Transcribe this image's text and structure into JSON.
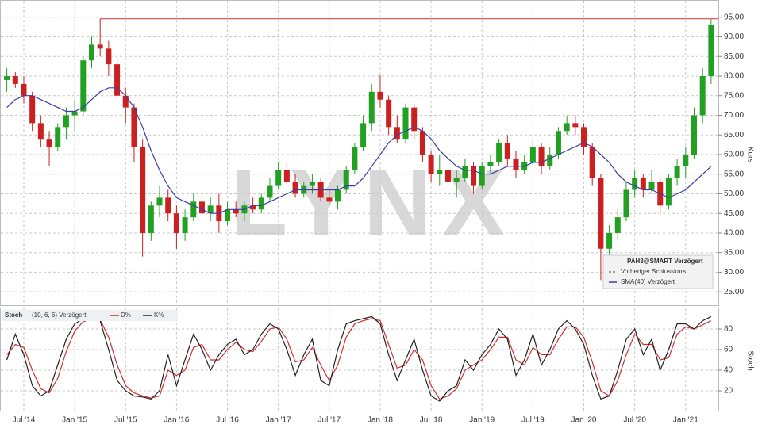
{
  "chart_data": [
    {
      "type": "candlestick",
      "title": "PAH3@SMART Verzögert",
      "y_label": "Kurs",
      "watermark": "LYNX",
      "x": [
        "2014-05",
        "2014-06",
        "2014-07",
        "2014-08",
        "2014-09",
        "2014-10",
        "2014-11",
        "2014-12",
        "2015-01",
        "2015-02",
        "2015-03",
        "2015-04",
        "2015-05",
        "2015-06",
        "2015-07",
        "2015-08",
        "2015-09",
        "2015-10",
        "2015-11",
        "2015-12",
        "2016-01",
        "2016-02",
        "2016-03",
        "2016-04",
        "2016-05",
        "2016-06",
        "2016-07",
        "2016-08",
        "2016-09",
        "2016-10",
        "2016-11",
        "2016-12",
        "2017-01",
        "2017-02",
        "2017-03",
        "2017-04",
        "2017-05",
        "2017-06",
        "2017-07",
        "2017-08",
        "2017-09",
        "2017-10",
        "2017-11",
        "2017-12",
        "2018-01",
        "2018-02",
        "2018-03",
        "2018-04",
        "2018-05",
        "2018-06",
        "2018-07",
        "2018-08",
        "2018-09",
        "2018-10",
        "2018-11",
        "2018-12",
        "2019-01",
        "2019-02",
        "2019-03",
        "2019-04",
        "2019-05",
        "2019-06",
        "2019-07",
        "2019-08",
        "2019-09",
        "2019-10",
        "2019-11",
        "2019-12",
        "2020-01",
        "2020-02",
        "2020-03",
        "2020-04",
        "2020-05",
        "2020-06",
        "2020-07",
        "2020-08",
        "2020-09",
        "2020-10",
        "2020-11",
        "2020-12",
        "2021-01",
        "2021-02",
        "2021-03",
        "2021-04"
      ],
      "open": [
        79,
        80,
        78,
        75,
        68,
        64,
        62,
        67,
        70,
        71,
        84,
        88,
        87,
        83,
        75,
        72,
        62,
        40,
        47,
        49,
        45,
        40,
        44,
        48,
        45,
        47,
        43,
        46,
        45,
        47,
        46,
        49,
        52,
        56,
        53,
        50,
        52,
        53,
        49,
        48,
        51,
        56,
        62,
        68,
        76,
        74,
        67,
        64,
        72,
        66,
        60,
        55,
        56,
        53,
        54,
        57,
        52,
        57,
        58,
        63,
        59,
        56,
        58,
        62,
        57,
        60,
        66,
        68,
        67,
        62,
        54,
        36,
        40,
        44,
        51,
        54,
        51,
        53,
        47,
        54,
        57,
        60,
        70,
        80
      ],
      "high": [
        82,
        81,
        80,
        76,
        70,
        66,
        68,
        72,
        74,
        85,
        90,
        94.6,
        89,
        85,
        77,
        73,
        64,
        48,
        52,
        51,
        47,
        46,
        50,
        51,
        49,
        50,
        48,
        48,
        48,
        49,
        50,
        54,
        58,
        58,
        55,
        53,
        55,
        54,
        51,
        52,
        57,
        63,
        70,
        78,
        80.3,
        75,
        70,
        73,
        73,
        67,
        61,
        60,
        58,
        56,
        59,
        58,
        58,
        60,
        64,
        65,
        61,
        60,
        64,
        63,
        62,
        67,
        70,
        70,
        68,
        63,
        55,
        42,
        46,
        53,
        56,
        55,
        56,
        54,
        55,
        59,
        62,
        72,
        82,
        94.5
      ],
      "low": [
        76,
        77,
        73,
        66,
        62,
        57,
        61,
        64,
        66,
        70,
        82,
        85,
        80,
        74,
        68,
        58,
        34,
        38,
        44,
        43,
        36,
        38,
        43,
        44,
        43,
        40,
        42,
        44,
        43,
        45,
        45,
        48,
        51,
        52,
        49,
        49,
        50,
        48,
        47,
        46,
        50,
        55,
        61,
        66,
        72,
        65,
        63,
        63,
        64,
        58,
        53,
        52,
        51,
        49,
        53,
        50,
        51,
        55,
        57,
        57,
        54,
        55,
        57,
        55,
        56,
        59,
        65,
        65,
        60,
        52,
        28,
        33,
        38,
        43,
        49,
        49,
        50,
        45,
        46,
        52,
        54,
        59,
        68,
        78
      ],
      "close": [
        80,
        78,
        75,
        68,
        64,
        62,
        67,
        70,
        71,
        84,
        88,
        87,
        83,
        75,
        72,
        62,
        40,
        47,
        49,
        45,
        40,
        44,
        48,
        45,
        47,
        43,
        46,
        45,
        47,
        46,
        49,
        52,
        56,
        53,
        50,
        52,
        53,
        49,
        48,
        51,
        56,
        62,
        68,
        76,
        74,
        67,
        64,
        72,
        66,
        60,
        55,
        56,
        53,
        54,
        57,
        52,
        57,
        58,
        63,
        59,
        56,
        58,
        62,
        57,
        60,
        66,
        68,
        67,
        62,
        54,
        36,
        40,
        44,
        51,
        54,
        51,
        53,
        47,
        54,
        57,
        60,
        70,
        80,
        93
      ],
      "up_color": "#22a022",
      "down_color": "#cc2020",
      "sma": {
        "name": "SMA(40) Verzögert",
        "color": "#3c3ca8",
        "values": [
          72,
          74,
          75,
          75,
          74,
          73,
          72,
          71,
          71,
          72,
          74,
          76,
          77,
          77,
          75,
          72,
          67,
          61,
          56,
          52,
          49,
          48,
          47,
          46,
          45,
          45,
          46,
          46,
          46,
          47,
          47,
          48,
          49,
          50,
          51,
          51,
          51,
          51,
          51,
          51,
          52,
          52,
          54,
          57,
          60,
          63,
          65,
          66,
          67,
          66,
          64,
          61,
          59,
          57,
          56,
          56,
          55,
          55,
          56,
          57,
          57,
          57,
          58,
          58,
          59,
          60,
          61,
          62,
          63,
          62,
          60,
          58,
          55,
          53,
          52,
          51,
          51,
          50,
          49,
          50,
          51,
          53,
          55,
          57
        ]
      },
      "previous_close": {
        "name": "Vorheriger Schlusskurs"
      },
      "reference_lines": [
        {
          "value": 94.6,
          "color": "#cc3333",
          "start": "2015-04"
        },
        {
          "value": 80.3,
          "color": "#33aa33",
          "start": "2018-01"
        }
      ],
      "ylim": [
        21.6,
        99.4
      ],
      "yticks": [
        {
          "value": 25,
          "label": "25.00"
        },
        {
          "value": 30,
          "label": "30.00"
        },
        {
          "value": 35,
          "label": "35.00"
        },
        {
          "value": 40,
          "label": "40.00"
        },
        {
          "value": 45,
          "label": "45.00"
        },
        {
          "value": 50,
          "label": "50.00"
        },
        {
          "value": 55,
          "label": "55.00"
        },
        {
          "value": 60,
          "label": "60.00"
        },
        {
          "value": 65,
          "label": "65.00"
        },
        {
          "value": 70,
          "label": "70.00"
        },
        {
          "value": 75,
          "label": "75.00"
        },
        {
          "value": 80,
          "label": "80.00"
        },
        {
          "value": 85,
          "label": "85.00"
        },
        {
          "value": 90,
          "label": "90.00"
        },
        {
          "value": 95,
          "label": "95.00"
        }
      ],
      "xticks": [
        {
          "value": "2014-07",
          "label": "Jul '14"
        },
        {
          "value": "2015-01",
          "label": "Jan '15"
        },
        {
          "value": "2015-07",
          "label": "Jul '15"
        },
        {
          "value": "2016-01",
          "label": "Jan '16"
        },
        {
          "value": "2016-07",
          "label": "Jul '16"
        },
        {
          "value": "2017-01",
          "label": "Jan '17"
        },
        {
          "value": "2017-07",
          "label": "Jul '17"
        },
        {
          "value": "2018-01",
          "label": "Jan '18"
        },
        {
          "value": "2018-07",
          "label": "Jul '18"
        },
        {
          "value": "2019-01",
          "label": "Jan '19"
        },
        {
          "value": "2019-07",
          "label": "Jul '19"
        },
        {
          "value": "2020-01",
          "label": "Jan '20"
        },
        {
          "value": "2020-07",
          "label": "Jul '20"
        },
        {
          "value": "2021-01",
          "label": "Jan '21"
        }
      ],
      "grid": true
    },
    {
      "type": "line",
      "title": "Stoch",
      "subtitle": "(10, 6, 6) Verzögert",
      "y_label": "Stoch",
      "series": [
        {
          "name": "D%",
          "color": "#d03030",
          "values": [
            55,
            65,
            62,
            40,
            22,
            18,
            32,
            58,
            78,
            87,
            90,
            89,
            72,
            45,
            25,
            18,
            15,
            13,
            15,
            40,
            35,
            40,
            62,
            65,
            50,
            50,
            60,
            67,
            60,
            58,
            68,
            80,
            82,
            70,
            48,
            50,
            62,
            45,
            30,
            45,
            72,
            85,
            88,
            90,
            88,
            65,
            42,
            45,
            60,
            50,
            25,
            12,
            15,
            22,
            40,
            45,
            50,
            60,
            72,
            72,
            50,
            45,
            62,
            55,
            55,
            70,
            82,
            82,
            72,
            48,
            20,
            15,
            30,
            55,
            75,
            65,
            65,
            50,
            52,
            75,
            82,
            80,
            84,
            88
          ]
        },
        {
          "name": "K%",
          "color": "#222222",
          "values": [
            50,
            75,
            55,
            25,
            15,
            20,
            45,
            70,
            85,
            90,
            92,
            88,
            60,
            30,
            20,
            15,
            14,
            12,
            20,
            55,
            25,
            50,
            75,
            60,
            40,
            55,
            65,
            70,
            55,
            60,
            75,
            85,
            80,
            60,
            35,
            55,
            70,
            30,
            25,
            60,
            85,
            88,
            90,
            92,
            85,
            55,
            30,
            50,
            70,
            40,
            15,
            10,
            20,
            25,
            50,
            40,
            55,
            65,
            80,
            70,
            35,
            50,
            75,
            45,
            60,
            80,
            88,
            80,
            65,
            35,
            12,
            15,
            40,
            70,
            80,
            55,
            70,
            40,
            60,
            85,
            85,
            80,
            88,
            92
          ]
        }
      ],
      "ylim": [
        0,
        100
      ],
      "yticks": [
        20,
        40,
        60,
        80
      ],
      "grid": true
    }
  ]
}
